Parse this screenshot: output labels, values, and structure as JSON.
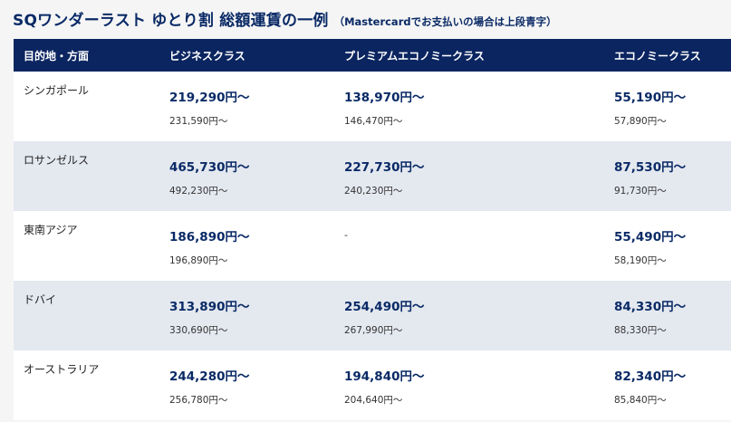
{
  "heading": {
    "title": "SQワンダーラスト ゆとり割 総額運賃の一例",
    "note": "（Mastercardでお支払いの場合は上段青字）"
  },
  "table": {
    "headers": [
      "目的地・方面",
      "ビジネスクラス",
      "プレミアムエコノミークラス",
      "エコノミークラス"
    ],
    "rows": [
      {
        "destination": "シンガポール",
        "business": {
          "main": "219,290円〜",
          "sub": "231,590円〜"
        },
        "premium": {
          "main": "138,970円〜",
          "sub": "146,470円〜"
        },
        "economy": {
          "main": "55,190円〜",
          "sub": "57,890円〜"
        }
      },
      {
        "destination": "ロサンゼルス",
        "business": {
          "main": "465,730円〜",
          "sub": "492,230円〜"
        },
        "premium": {
          "main": "227,730円〜",
          "sub": "240,230円〜"
        },
        "economy": {
          "main": "87,530円〜",
          "sub": "91,730円〜"
        }
      },
      {
        "destination": "東南アジア",
        "business": {
          "main": "186,890円〜",
          "sub": "196,890円〜"
        },
        "premium": {
          "dash": "-"
        },
        "economy": {
          "main": "55,490円〜",
          "sub": "58,190円〜"
        }
      },
      {
        "destination": "ドバイ",
        "business": {
          "main": "313,890円〜",
          "sub": "330,690円〜"
        },
        "premium": {
          "main": "254,490円〜",
          "sub": "267,990円〜"
        },
        "economy": {
          "main": "84,330円〜",
          "sub": "88,330円〜"
        }
      },
      {
        "destination": "オーストラリア",
        "business": {
          "main": "244,280円〜",
          "sub": "256,780円〜"
        },
        "premium": {
          "main": "194,840円〜",
          "sub": "204,640円〜"
        },
        "economy": {
          "main": "82,340円〜",
          "sub": "85,840円〜"
        }
      }
    ]
  },
  "colors": {
    "header_bg": "#0b2560",
    "price_blue": "#0a2a66",
    "stripe": "#e4e8ef"
  }
}
